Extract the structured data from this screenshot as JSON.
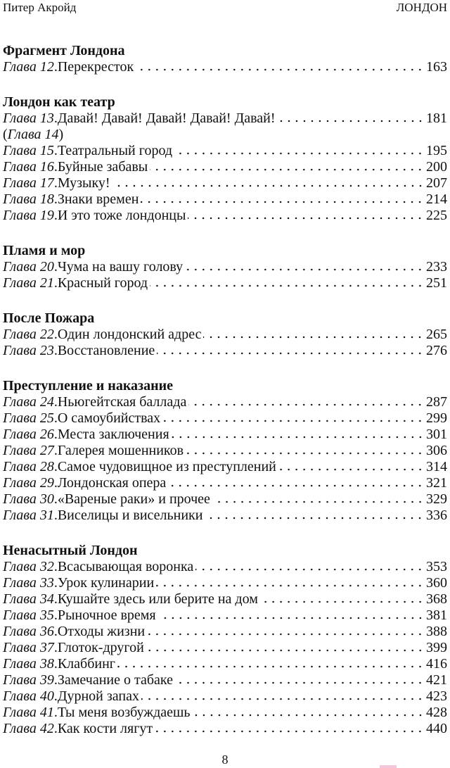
{
  "header": {
    "author": "Питер Акройд",
    "title": "ЛОНДОН"
  },
  "chapter_word": "Глава",
  "sections": [
    {
      "title": "Фрагмент Лондона",
      "entries": [
        {
          "chapter": "Глава 12",
          "title": "Перекресток",
          "page": "163"
        }
      ]
    },
    {
      "title": "Лондон как театр",
      "entries": [
        {
          "chapter": "Глава 13",
          "title": "Давай! Давай! Давай! Давай! Давай!",
          "page": "181"
        },
        {
          "chapter": "Глава 14",
          "title": "",
          "page": "",
          "parenthetical": true
        },
        {
          "chapter": "Глава 15",
          "title": "Театральный город",
          "page": "195"
        },
        {
          "chapter": "Глава 16",
          "title": "Буйные забавы",
          "page": "200"
        },
        {
          "chapter": "Глава 17",
          "title": "Музыку!",
          "page": "207"
        },
        {
          "chapter": "Глава 18",
          "title": "Знаки времен",
          "page": "214"
        },
        {
          "chapter": "Глава 19",
          "title": "И это тоже лондонцы",
          "page": "225"
        }
      ]
    },
    {
      "title": "Пламя и мор",
      "entries": [
        {
          "chapter": "Глава 20",
          "title": "Чума на вашу голову",
          "page": "233"
        },
        {
          "chapter": "Глава 21",
          "title": "Красный город",
          "page": "251"
        }
      ]
    },
    {
      "title": "После Пожара",
      "entries": [
        {
          "chapter": "Глава 22",
          "title": "Один лондонский адрес",
          "page": "265"
        },
        {
          "chapter": "Глава 23",
          "title": "Восстановление",
          "page": "276"
        }
      ]
    },
    {
      "title": "Преступление и наказание",
      "entries": [
        {
          "chapter": "Глава 24",
          "title": "Ньюгейтская баллада",
          "page": "287"
        },
        {
          "chapter": "Глава 25",
          "title": "О самоубийствах",
          "page": "299"
        },
        {
          "chapter": "Глава 26",
          "title": "Места заключения",
          "page": "301"
        },
        {
          "chapter": "Глава 27",
          "title": "Галерея мошенников",
          "page": "306"
        },
        {
          "chapter": "Глава 28",
          "title": "Самое чудовищное из преступлений",
          "page": "314"
        },
        {
          "chapter": "Глава 29",
          "title": "Лондонская опера",
          "page": "321"
        },
        {
          "chapter": "Глава 30",
          "title": "«Вареные раки» и прочее",
          "page": "329"
        },
        {
          "chapter": "Глава 31",
          "title": "Виселицы и висельники",
          "page": "336"
        }
      ]
    },
    {
      "title": "Ненасытный Лондон",
      "entries": [
        {
          "chapter": "Глава 32",
          "title": "Всасывающая воронка",
          "page": "353"
        },
        {
          "chapter": "Глава 33",
          "title": "Урок кулинарии",
          "page": "360"
        },
        {
          "chapter": "Глава 34",
          "title": "Кушайте здесь или берите на дом",
          "page": "368"
        },
        {
          "chapter": "Глава 35",
          "title": "Рыночное время",
          "page": "381"
        },
        {
          "chapter": "Глава 36",
          "title": "Отходы жизни",
          "page": "388"
        },
        {
          "chapter": "Глава 37",
          "title": "Глоток-другой",
          "page": "399"
        },
        {
          "chapter": "Глава 38",
          "title": "Клаббинг",
          "page": "416"
        },
        {
          "chapter": "Глава 39",
          "title": "Замечание о табаке",
          "page": "421"
        },
        {
          "chapter": "Глава 40",
          "title": "Дурной запах",
          "page": "423"
        },
        {
          "chapter": "Глава 41",
          "title": "Ты меня возбуждаешь",
          "page": "428"
        },
        {
          "chapter": "Глава 42",
          "title": "Как кости лягут",
          "page": "440"
        }
      ]
    }
  ],
  "footer": {
    "page_number": "8"
  }
}
